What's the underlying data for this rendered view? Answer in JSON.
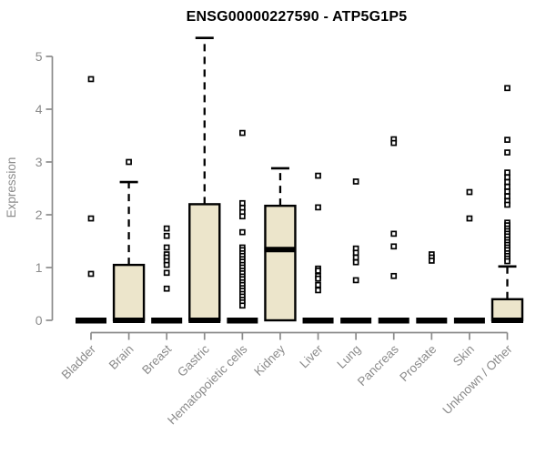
{
  "chart_data": {
    "type": "boxplot",
    "title": "ENSG00000227590 - ATP5G1P5",
    "ylabel": "Expression",
    "xlabel": "",
    "ylim": [
      0,
      5
    ],
    "yticks": [
      0,
      1,
      2,
      3,
      4,
      5
    ],
    "grid": false,
    "legend": null,
    "colors": {
      "box_fill": "#ece5cb",
      "box_stroke": "#000000",
      "axis": "#8b8b8b",
      "text": "#8b8b8b",
      "title": "#000000",
      "outlier_fill": "#ffffff"
    },
    "categories": [
      "Bladder",
      "Brain",
      "Breast",
      "Gastric",
      "Hematopoietic cells",
      "Kidney",
      "Liver",
      "Lung",
      "Pancreas",
      "Prostate",
      "Skin",
      "Unknown / Other"
    ],
    "boxes": [
      {
        "category": "Bladder",
        "q1": 0,
        "median": 0,
        "q3": 0,
        "whisker_low": 0,
        "whisker_high": 0,
        "outliers": [
          4.57,
          1.93,
          0.88
        ]
      },
      {
        "category": "Brain",
        "q1": 0,
        "median": 0,
        "q3": 1.05,
        "whisker_low": 0,
        "whisker_high": 2.62,
        "outliers": [
          3.0
        ]
      },
      {
        "category": "Breast",
        "q1": 0,
        "median": 0,
        "q3": 0,
        "whisker_low": 0,
        "whisker_high": 0,
        "outliers": [
          1.74,
          1.6,
          1.38,
          1.25,
          1.19,
          1.12,
          1.05,
          0.9,
          0.6
        ]
      },
      {
        "category": "Gastric",
        "q1": 0,
        "median": 0,
        "q3": 2.2,
        "whisker_low": 0,
        "whisker_high": 5.35,
        "outliers": []
      },
      {
        "category": "Hematopoietic cells",
        "q1": 0,
        "median": 0,
        "q3": 0,
        "whisker_low": 0,
        "whisker_high": 0,
        "outliers": [
          3.55,
          2.22,
          2.13,
          2.05,
          1.97,
          1.67,
          1.38,
          1.33,
          1.27,
          1.22,
          1.16,
          1.11,
          1.05,
          1.0,
          0.94,
          0.89,
          0.83,
          0.78,
          0.72,
          0.67,
          0.61,
          0.56,
          0.5,
          0.45,
          0.39,
          0.34,
          0.28
        ]
      },
      {
        "category": "Kidney",
        "q1": 0,
        "median": 1.34,
        "q3": 2.17,
        "whisker_low": 0,
        "whisker_high": 2.88,
        "outliers": []
      },
      {
        "category": "Liver",
        "q1": 0,
        "median": 0,
        "q3": 0,
        "whisker_low": 0,
        "whisker_high": 0,
        "outliers": [
          2.74,
          2.14,
          0.98,
          0.94,
          0.84,
          0.79,
          0.67,
          0.57
        ]
      },
      {
        "category": "Lung",
        "q1": 0,
        "median": 0,
        "q3": 0,
        "whisker_low": 0,
        "whisker_high": 0,
        "outliers": [
          2.63,
          1.36,
          1.28,
          1.19,
          1.1,
          0.76
        ]
      },
      {
        "category": "Pancreas",
        "q1": 0,
        "median": 0,
        "q3": 0,
        "whisker_low": 0,
        "whisker_high": 0,
        "outliers": [
          3.43,
          3.36,
          1.64,
          1.4,
          0.84
        ]
      },
      {
        "category": "Prostate",
        "q1": 0,
        "median": 0,
        "q3": 0,
        "whisker_low": 0,
        "whisker_high": 0,
        "outliers": [
          1.25,
          1.19,
          1.13
        ]
      },
      {
        "category": "Skin",
        "q1": 0,
        "median": 0,
        "q3": 0,
        "whisker_low": 0,
        "whisker_high": 0,
        "outliers": [
          2.43,
          1.93
        ]
      },
      {
        "category": "Unknown / Other",
        "q1": 0,
        "median": 0,
        "q3": 0.4,
        "whisker_low": 0,
        "whisker_high": 1.02,
        "outliers": [
          4.4,
          3.42,
          3.18,
          2.8,
          2.71,
          2.62,
          2.53,
          2.44,
          2.35,
          2.26,
          2.19,
          1.85,
          1.8,
          1.74,
          1.69,
          1.64,
          1.59,
          1.53,
          1.48,
          1.43,
          1.38,
          1.33,
          1.27,
          1.22,
          1.17,
          1.12
        ]
      }
    ]
  }
}
